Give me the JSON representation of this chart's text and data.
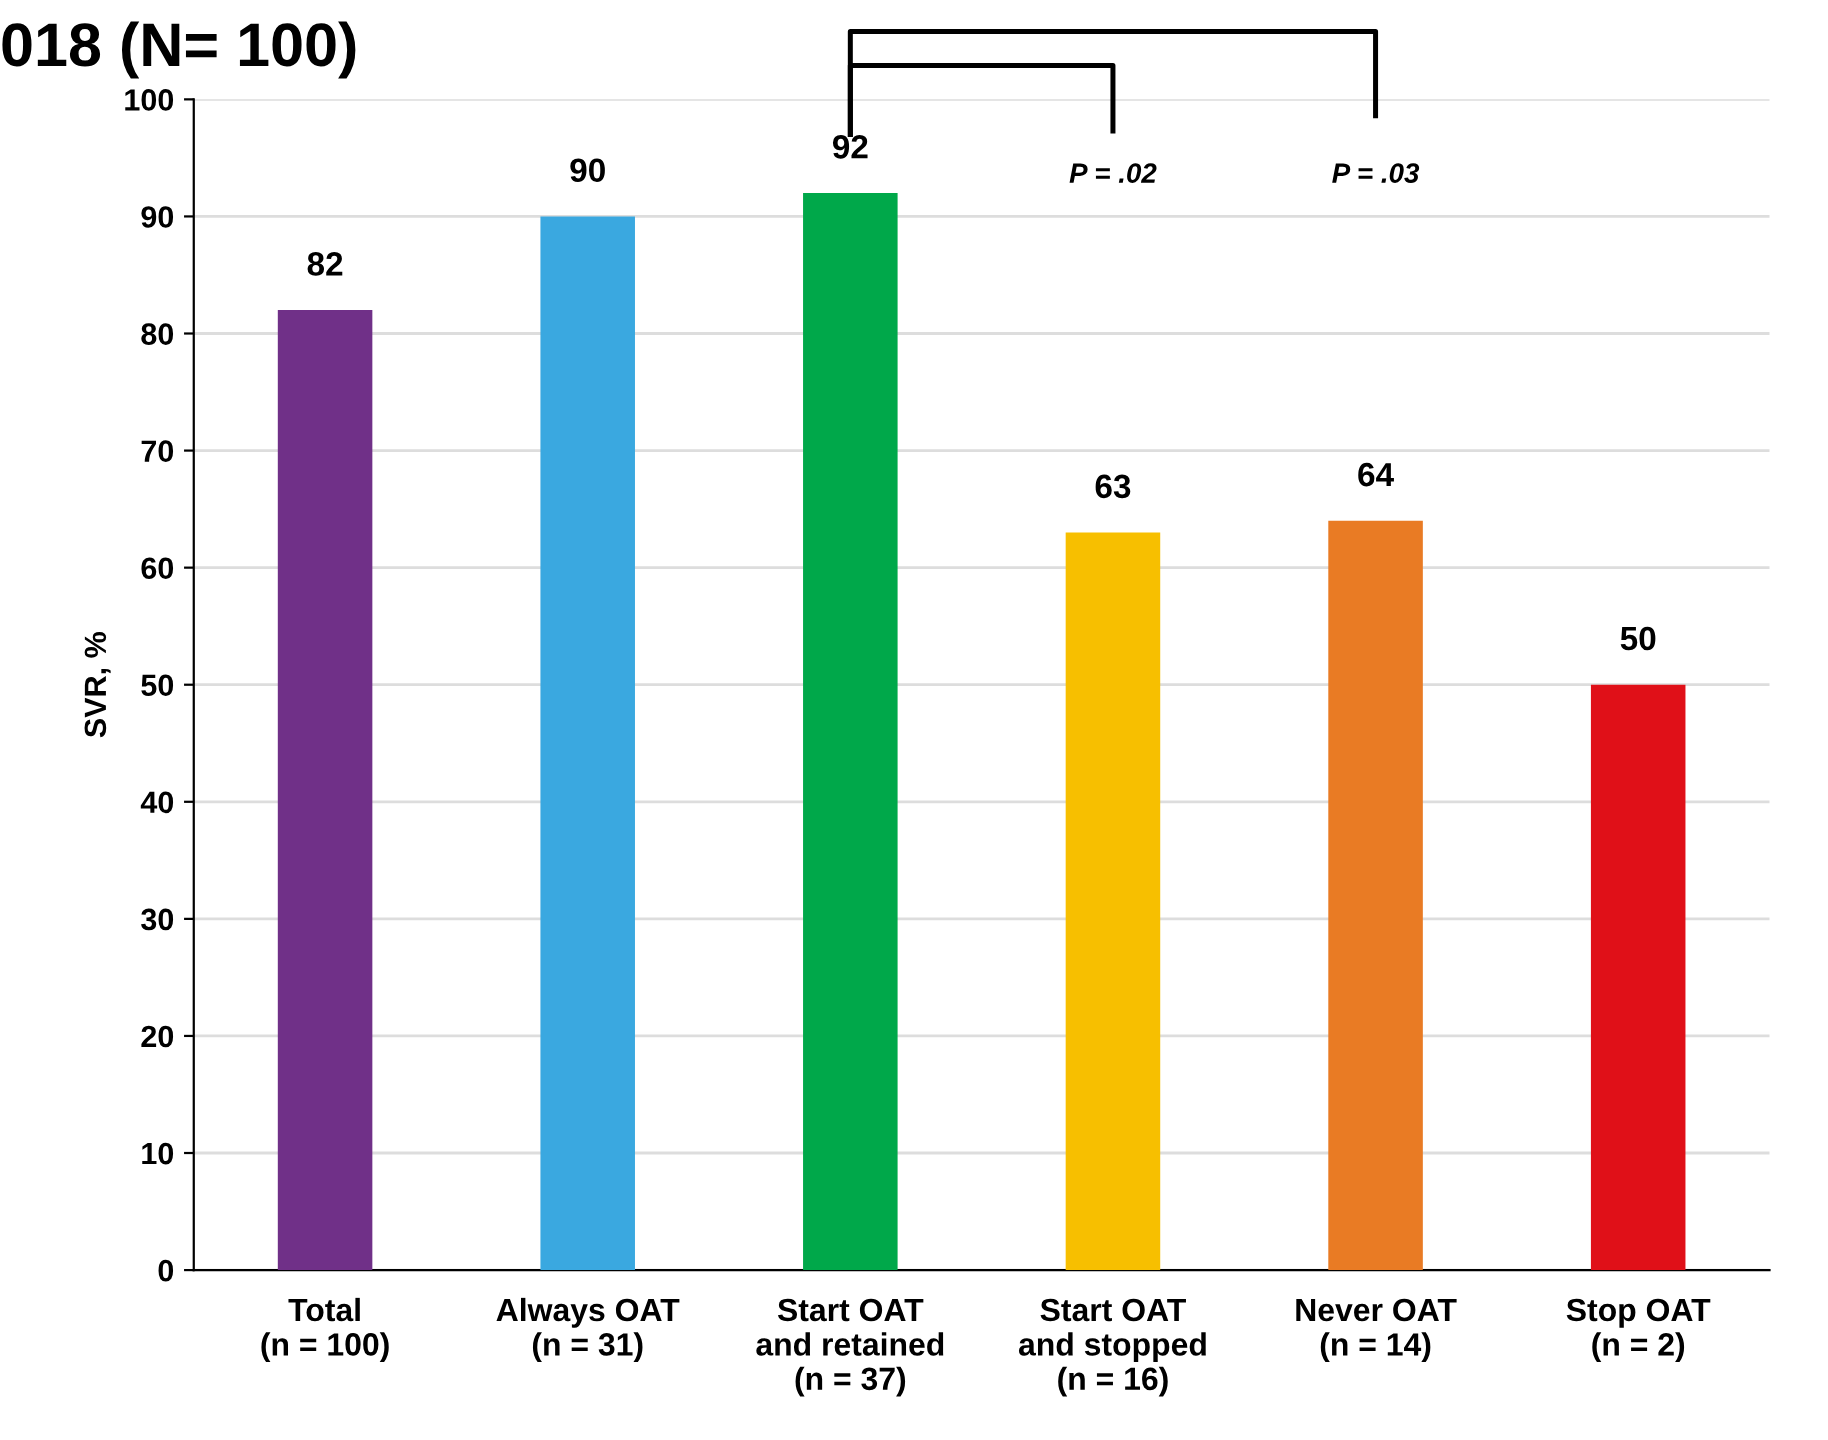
{
  "chart_data": {
    "type": "bar",
    "title": "018 (N= 100)",
    "ylabel": "SVR, %",
    "categories": [
      "Total\n(n = 100)",
      "Always OAT\n(n = 31)",
      "Start OAT\nand retained\n(n = 37)",
      "Start OAT\nand stopped\n(n = 16)",
      "Never OAT\n(n = 14)",
      "Stop OAT\n(n = 2)"
    ],
    "values": [
      82,
      90,
      92,
      63,
      64,
      50
    ],
    "colors": [
      "#703088",
      "#3aa8e0",
      "#00a84a",
      "#f7bf00",
      "#e97b24",
      "#e01018"
    ],
    "ylim": [
      0,
      100
    ],
    "yticks": [
      0,
      10,
      20,
      30,
      40,
      50,
      60,
      70,
      80,
      90,
      100
    ],
    "grid": "y",
    "data_labels": true,
    "annotations": [
      "P = .02",
      "P = .03"
    ]
  }
}
